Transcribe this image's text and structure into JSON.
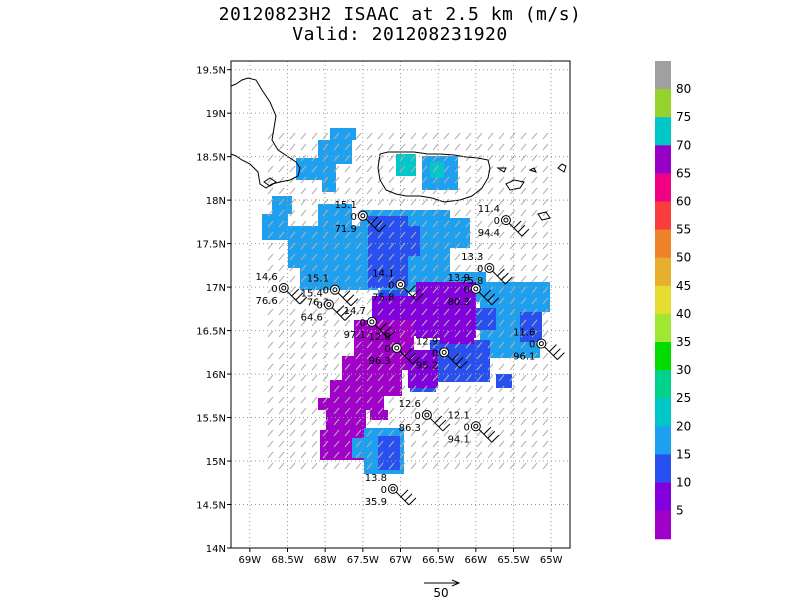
{
  "title": {
    "line1": "20120823H2 ISAAC at 2.5 km (m/s)",
    "line2": "Valid: 201208231920"
  },
  "map": {
    "lon_range": [
      -69.25,
      -64.75
    ],
    "lat_range": [
      14.0,
      19.6
    ],
    "x_ticks": [
      {
        "v": -69.0,
        "label": "69W"
      },
      {
        "v": -68.5,
        "label": "68.5W"
      },
      {
        "v": -68.0,
        "label": "68W"
      },
      {
        "v": -67.5,
        "label": "67.5W"
      },
      {
        "v": -67.0,
        "label": "67W"
      },
      {
        "v": -66.5,
        "label": "66.5W"
      },
      {
        "v": -66.0,
        "label": "66W"
      },
      {
        "v": -65.5,
        "label": "65.5W"
      },
      {
        "v": -65.0,
        "label": "65W"
      }
    ],
    "y_ticks": [
      {
        "v": 14.0,
        "label": "14N"
      },
      {
        "v": 14.5,
        "label": "14.5N"
      },
      {
        "v": 15.0,
        "label": "15N"
      },
      {
        "v": 15.5,
        "label": "15.5N"
      },
      {
        "v": 16.0,
        "label": "16N"
      },
      {
        "v": 16.5,
        "label": "16.5N"
      },
      {
        "v": 17.0,
        "label": "17N"
      },
      {
        "v": 17.5,
        "label": "17.5N"
      },
      {
        "v": 18.0,
        "label": "18N"
      },
      {
        "v": 18.5,
        "label": "18.5N"
      },
      {
        "v": 19.0,
        "label": "19N"
      },
      {
        "v": 19.5,
        "label": "19.5N"
      }
    ],
    "gridlines": true
  },
  "colorbar": {
    "labels": [
      "80",
      "75",
      "70",
      "65",
      "60",
      "55",
      "50",
      "45",
      "40",
      "35",
      "30",
      "25",
      "20",
      "15",
      "10",
      "5"
    ],
    "colors": [
      "#a0a0a0",
      "#96d22c",
      "#00c8c8",
      "#9600c8",
      "#f00082",
      "#fa3c3c",
      "#f08228",
      "#e6af2d",
      "#e6dc32",
      "#a0e632",
      "#00dc00",
      "#00d28c",
      "#00c8c8",
      "#1ea0f0",
      "#2850f0",
      "#8200dc",
      "#a000c8"
    ]
  },
  "stations": [
    {
      "wind": "15.1",
      "dir": "0",
      "pres": "71.9",
      "lon": -67.5,
      "lat": 17.82
    },
    {
      "wind": "11.4",
      "dir": "0",
      "pres": "94.4",
      "lon": -65.6,
      "lat": 17.77
    },
    {
      "wind": "13.3",
      "dir": "0",
      "pres": "75.8",
      "lon": -65.82,
      "lat": 17.22
    },
    {
      "wind": "14.1",
      "dir": "0",
      "pres": "75.8",
      "lon": -67.0,
      "lat": 17.03
    },
    {
      "wind": "13.9",
      "dir": "0",
      "pres": "80.3",
      "lon": -66.0,
      "lat": 16.98
    },
    {
      "wind": "14.6",
      "dir": "0",
      "pres": "76.6",
      "lon": -68.55,
      "lat": 16.99
    },
    {
      "wind": "15.1",
      "dir": "0",
      "pres": "76.3",
      "lon": -67.87,
      "lat": 16.97
    },
    {
      "wind": "15.4",
      "dir": "0",
      "pres": "64.6",
      "lon": -67.95,
      "lat": 16.8
    },
    {
      "wind": "14.7",
      "dir": "0",
      "pres": "97.1",
      "lon": -67.38,
      "lat": 16.6
    },
    {
      "wind": "11.6",
      "dir": "0",
      "pres": "96.1",
      "lon": -65.13,
      "lat": 16.35
    },
    {
      "wind": "12.8",
      "dir": "0",
      "pres": "96.3",
      "lon": -67.05,
      "lat": 16.3
    },
    {
      "wind": "12.9",
      "dir": "0",
      "pres": "95.2",
      "lon": -66.42,
      "lat": 16.25
    },
    {
      "wind": "12.6",
      "dir": "0",
      "pres": "86.3",
      "lon": -66.65,
      "lat": 15.53
    },
    {
      "wind": "12.1",
      "dir": "0",
      "pres": "94.1",
      "lon": -66.0,
      "lat": 15.4
    },
    {
      "wind": "13.8",
      "dir": "0",
      "pres": "35.9",
      "lon": -67.1,
      "lat": 14.68
    }
  ],
  "scale": {
    "label": "50"
  }
}
